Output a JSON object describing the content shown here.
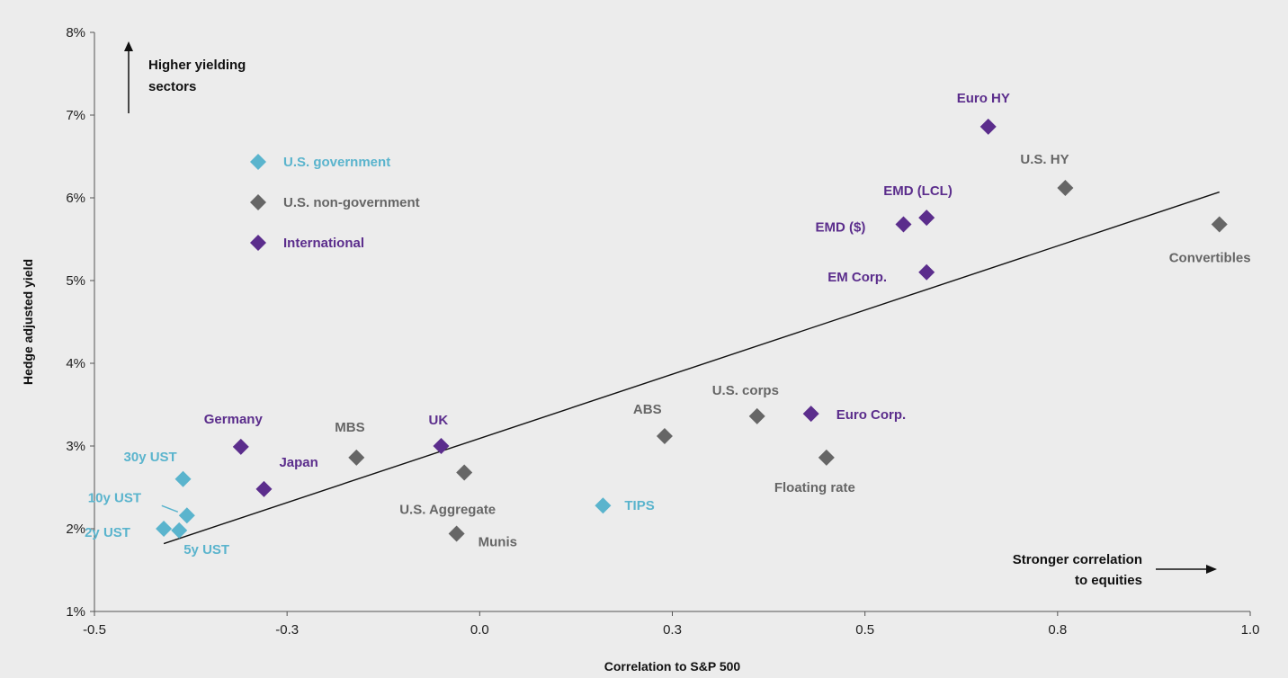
{
  "chart_data": {
    "type": "scatter",
    "title": "",
    "xlabel": "Correlation to S&P 500",
    "ylabel": "Hedge adjusted yield",
    "xlim": [
      -0.5,
      1.0
    ],
    "ylim": [
      1,
      8
    ],
    "x_ticks": [
      "-0.5",
      "-0.3",
      "0.0",
      "0.3",
      "0.5",
      "0.8",
      "1.0"
    ],
    "y_ticks": [
      "1%",
      "2%",
      "3%",
      "4%",
      "5%",
      "6%",
      "7%",
      "8%"
    ],
    "grid": false,
    "legend_position": "top-left",
    "series": [
      {
        "name": "U.S. government",
        "color": "#5ab4cd",
        "points": [
          {
            "label": "30y UST",
            "x": -0.385,
            "y": 2.6
          },
          {
            "label": "10y UST",
            "x": -0.38,
            "y": 2.16
          },
          {
            "label": "2y UST",
            "x": -0.41,
            "y": 2.0
          },
          {
            "label": "5y UST",
            "x": -0.39,
            "y": 1.98
          },
          {
            "label": "TIPS",
            "x": 0.16,
            "y": 2.28
          }
        ]
      },
      {
        "name": "U.S. non-government",
        "color": "#666666",
        "points": [
          {
            "label": "MBS",
            "x": -0.16,
            "y": 2.86
          },
          {
            "label": "U.S. Aggregate",
            "x": -0.02,
            "y": 2.68
          },
          {
            "label": "Munis",
            "x": -0.03,
            "y": 1.94
          },
          {
            "label": "ABS",
            "x": 0.24,
            "y": 3.12
          },
          {
            "label": "U.S. corps",
            "x": 0.36,
            "y": 3.36
          },
          {
            "label": "Floating rate",
            "x": 0.45,
            "y": 2.86
          },
          {
            "label": "U.S. HY",
            "x": 0.76,
            "y": 6.12
          },
          {
            "label": "Convertibles",
            "x": 0.96,
            "y": 5.68
          }
        ]
      },
      {
        "name": "International",
        "color": "#5b2d8c",
        "points": [
          {
            "label": "Germany",
            "x": -0.31,
            "y": 2.99
          },
          {
            "label": "Japan",
            "x": -0.28,
            "y": 2.48
          },
          {
            "label": "UK",
            "x": -0.05,
            "y": 3.0
          },
          {
            "label": "Euro Corp.",
            "x": 0.43,
            "y": 3.39
          },
          {
            "label": "EM Corp.",
            "x": 0.58,
            "y": 5.1
          },
          {
            "label": "EMD ($)",
            "x": 0.55,
            "y": 5.68
          },
          {
            "label": "EMD (LCL)",
            "x": 0.58,
            "y": 5.76
          },
          {
            "label": "Euro HY",
            "x": 0.66,
            "y": 6.86
          }
        ]
      }
    ],
    "trendline": {
      "x": [
        -0.41,
        0.96
      ],
      "y": [
        1.82,
        6.07
      ]
    },
    "annotations": {
      "top_note": [
        "Higher yielding",
        "sectors"
      ],
      "right_note": [
        "Stronger correlation",
        "to equities"
      ]
    }
  }
}
